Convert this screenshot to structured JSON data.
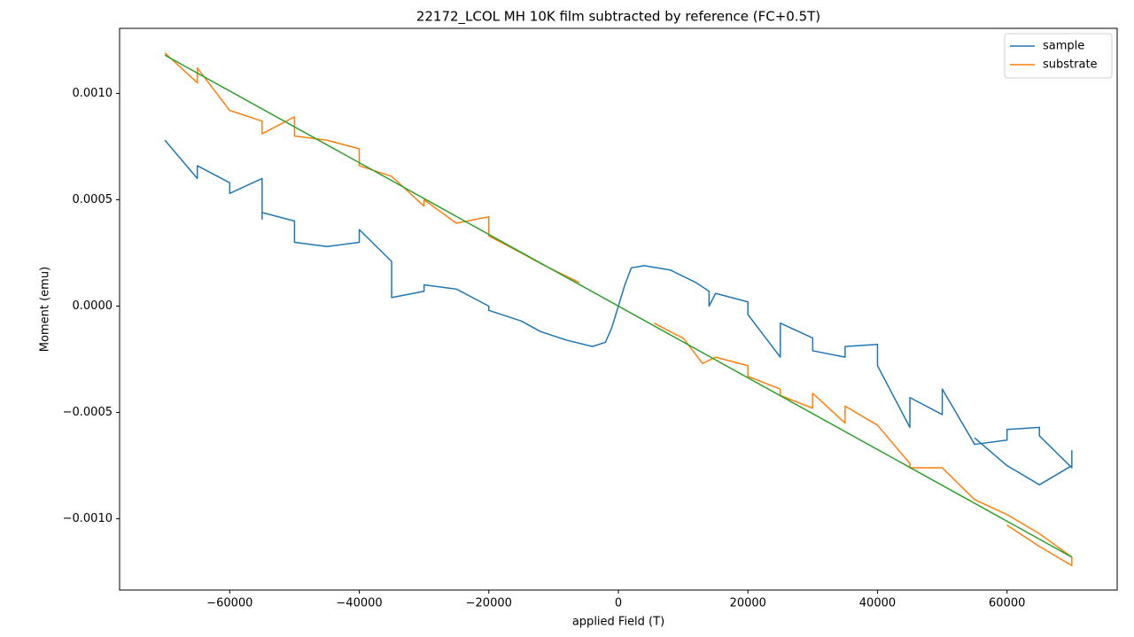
{
  "chart_data": {
    "type": "line",
    "title": "22172_LCOL MH 10K film subtracted by reference (FC+0.5T)",
    "xlabel": "applied Field (T)",
    "ylabel": "Moment (emu)",
    "xlim": [
      -77000,
      77000
    ],
    "ylim": [
      -0.001335,
      0.001306
    ],
    "xticks": [
      {
        "value": -60000,
        "label": "−60000"
      },
      {
        "value": -40000,
        "label": "−40000"
      },
      {
        "value": -20000,
        "label": "−20000"
      },
      0,
      20000,
      40000,
      60000
    ],
    "yticks": [
      {
        "value": -0.001,
        "label": "−0.0010"
      },
      {
        "value": -0.0005,
        "label": "−0.0005"
      },
      {
        "value": 0,
        "label": "0.0000"
      },
      {
        "value": 0.0005,
        "label": "0.0005"
      },
      {
        "value": 0.001,
        "label": "0.0010"
      }
    ],
    "grid": false,
    "legend": "upper right",
    "series": [
      {
        "name": "sample",
        "color": "#1f77b4",
        "x": [
          -70000,
          -65000,
          -65000,
          -60000,
          -60000,
          -55000,
          -55000,
          -55000,
          -50000,
          -50000,
          -45000,
          -40000,
          -40000,
          -35000,
          -35000,
          -30000,
          -30000,
          -25000,
          -20000,
          -20000,
          -15000,
          -12000,
          -8000,
          -4000,
          -2000,
          -1000,
          0,
          1000,
          2000,
          4000,
          8000,
          12000,
          14000,
          14000,
          15000,
          20000,
          20000,
          25000,
          25000,
          30000,
          30000,
          35000,
          35000,
          40000,
          40000,
          45000,
          45000,
          50000,
          50000,
          55000,
          60000,
          60000,
          65000,
          65000,
          70000,
          70000,
          70000,
          65000,
          60000,
          55000
        ],
        "values": [
          0.00078,
          0.0006,
          0.00066,
          0.00058,
          0.00053,
          0.0006,
          0.00041,
          0.00044,
          0.0004,
          0.0003,
          0.00028,
          0.0003,
          0.00036,
          0.00021,
          4e-05,
          7e-05,
          0.0001,
          8e-05,
          0.0,
          -2e-05,
          -7e-05,
          -0.00012,
          -0.00016,
          -0.00019,
          -0.00017,
          -0.0001,
          0.0,
          0.0001,
          0.00018,
          0.00019,
          0.00017,
          0.00011,
          7e-05,
          0.0,
          6e-05,
          2e-05,
          -4e-05,
          -0.00024,
          -8e-05,
          -0.00015,
          -0.00021,
          -0.00024,
          -0.00019,
          -0.00018,
          -0.00028,
          -0.00057,
          -0.00043,
          -0.00051,
          -0.00039,
          -0.00065,
          -0.00063,
          -0.00058,
          -0.00057,
          -0.00061,
          -0.00076,
          -0.00068,
          -0.00075,
          -0.00084,
          -0.00075,
          -0.00062
        ]
      },
      {
        "name": "substrate",
        "color": "#ff7f0e",
        "x": [
          -70000,
          -65000,
          -65000,
          -60000,
          -55000,
          -55000,
          -50000,
          -50000,
          -45000,
          -40000,
          -40000,
          -35000,
          -30000,
          -30000,
          -25000,
          -20000,
          -20000,
          -15000,
          -12000,
          -6000,
          0,
          5500,
          8000,
          10000,
          12000,
          13000,
          15000,
          20000,
          20000,
          25000,
          25000,
          30000,
          30000,
          35000,
          35000,
          40000,
          45000,
          45000,
          50000,
          55000,
          60000,
          65000,
          70000,
          70000,
          65000,
          60000
        ],
        "values": [
          0.00119,
          0.00105,
          0.00112,
          0.00092,
          0.00087,
          0.00081,
          0.00089,
          0.0008,
          0.00078,
          0.00074,
          0.00066,
          0.00061,
          0.00047,
          0.0005,
          0.00039,
          0.00042,
          0.00033,
          0.00025,
          0.0002,
          0.00011,
          null,
          -8e-05,
          -0.00012,
          -0.00015,
          -0.00023,
          -0.00027,
          -0.00024,
          -0.00028,
          -0.00033,
          -0.00039,
          -0.00042,
          -0.00048,
          -0.00041,
          -0.00055,
          -0.00047,
          -0.00056,
          -0.00074,
          -0.00076,
          -0.00076,
          -0.00091,
          -0.00098,
          -0.00107,
          -0.00118,
          -0.00122,
          -0.00113,
          -0.00103
        ]
      },
      {
        "color": "#2ca02c",
        "x": [
          -70000,
          70000
        ],
        "values": [
          0.00118,
          -0.00118
        ]
      }
    ]
  }
}
